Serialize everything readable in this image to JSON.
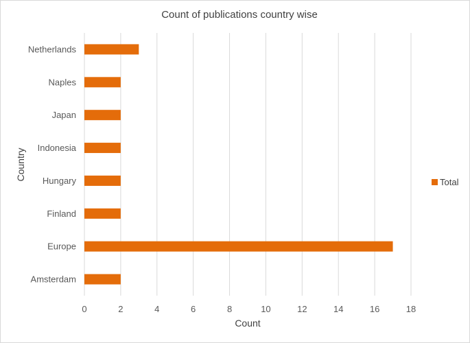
{
  "chart_data": {
    "type": "bar",
    "orientation": "horizontal",
    "title": "Count of publications country wise",
    "xlabel": "Count",
    "ylabel": "Country",
    "categories": [
      "Netherlands",
      "Naples",
      "Japan",
      "Indonesia",
      "Hungary",
      "Finland",
      "Europe",
      "Amsterdam"
    ],
    "series": [
      {
        "name": "Total",
        "values": [
          3,
          2,
          2,
          2,
          2,
          2,
          17,
          2
        ],
        "color": "#E46C0A"
      }
    ],
    "xlim": [
      0,
      18
    ],
    "xticks": [
      "0",
      "2",
      "4",
      "6",
      "8",
      "10",
      "12",
      "14",
      "16",
      "18"
    ],
    "grid": "vertical",
    "legend": "right"
  }
}
